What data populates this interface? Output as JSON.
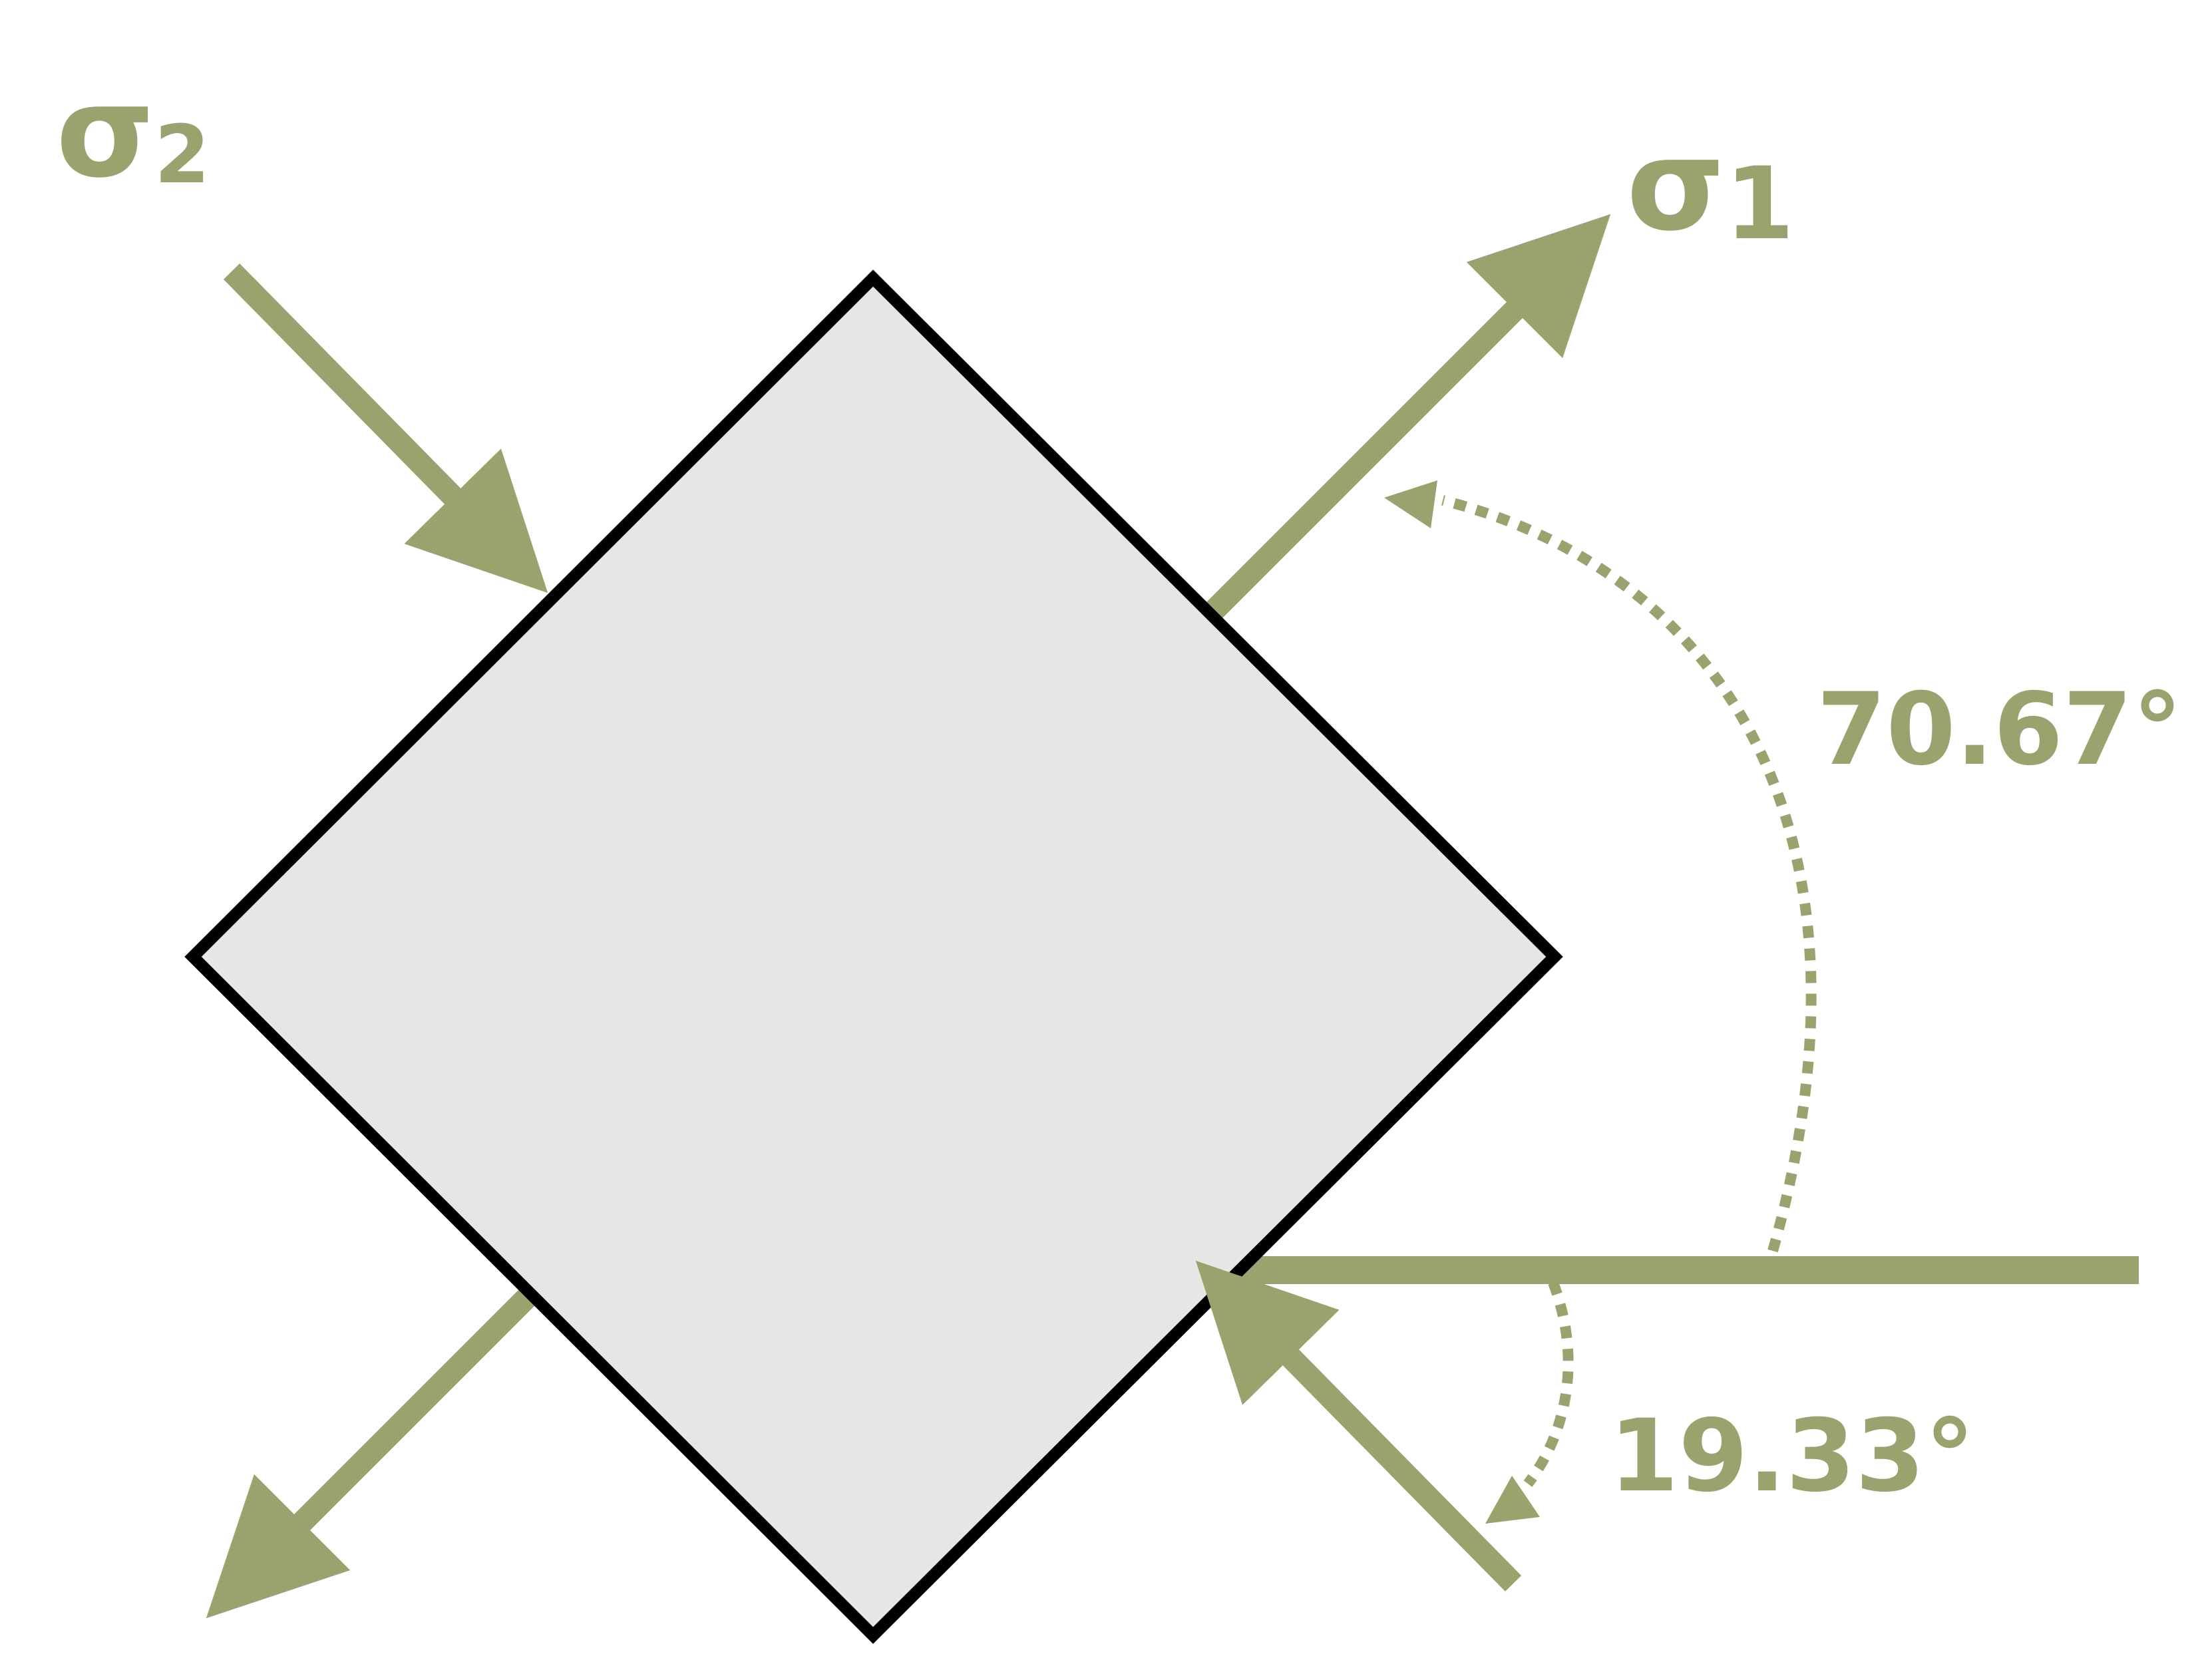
{
  "colors": {
    "accent": "#9aa26e",
    "element_fill": "#e6e6e6",
    "element_stroke": "#000000",
    "background": "#ffffff"
  },
  "labels": {
    "sigma1": {
      "symbol": "σ",
      "subscript": "1"
    },
    "sigma2": {
      "symbol": "σ",
      "subscript": "2"
    },
    "angle_large": "70.67°",
    "angle_small": "19.33°"
  },
  "angles_deg": {
    "principal_1": 70.67,
    "principal_2": 19.33
  }
}
